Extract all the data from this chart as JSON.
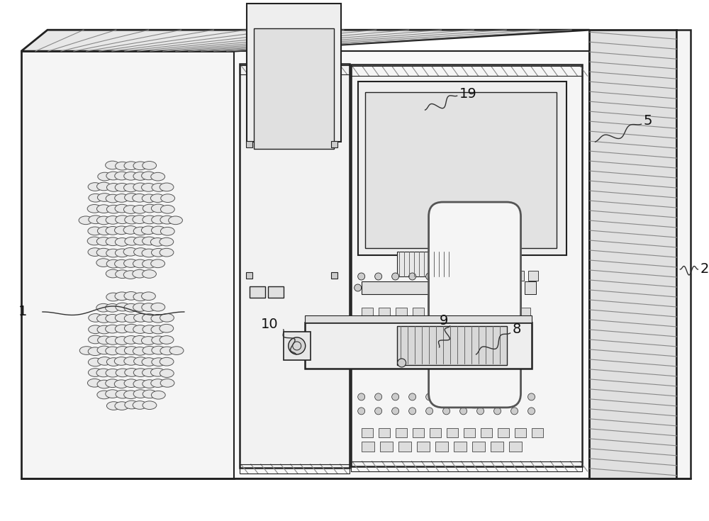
{
  "bg_color": "#ffffff",
  "lc": "#222222",
  "figsize": [
    10.0,
    7.35
  ],
  "dpi": 100
}
